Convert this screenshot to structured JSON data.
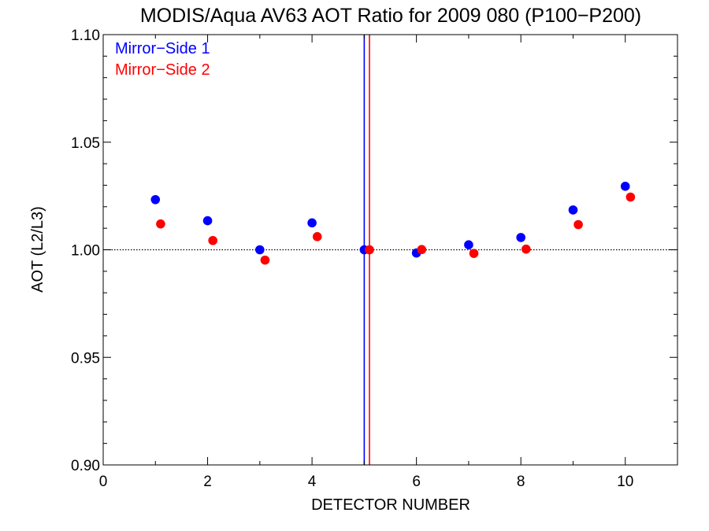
{
  "chart_data": {
    "type": "scatter",
    "title": "MODIS/Aqua AV63 AOT Ratio for 2009 080 (P100−P200)",
    "xlabel": "DETECTOR NUMBER",
    "ylabel": "AOT (L2/L3)",
    "xlim": [
      0,
      11
    ],
    "ylim": [
      0.9,
      1.1
    ],
    "xticks": [
      0,
      2,
      4,
      6,
      8,
      10
    ],
    "xtick_labels": [
      "0",
      "2",
      "4",
      "6",
      "8",
      "10"
    ],
    "yticks": [
      0.9,
      0.95,
      1.0,
      1.05,
      1.1
    ],
    "ytick_labels": [
      "0.90",
      "0.95",
      "1.00",
      "1.05",
      "1.10"
    ],
    "legend_position": "top-left",
    "reference_line": {
      "y": 1.0,
      "style": "dotted",
      "color": "#000000"
    },
    "vertical_lines": [
      {
        "x": 5.0,
        "color": "#0000ff"
      },
      {
        "x": 5.1,
        "color": "#ff0000"
      }
    ],
    "series": [
      {
        "name": "Mirror−Side 1",
        "color": "#0000ff",
        "x": [
          1,
          2,
          3,
          4,
          5,
          6,
          7,
          8,
          9,
          10
        ],
        "y": [
          1.0233,
          1.0135,
          1.0,
          1.0125,
          1.0,
          0.9985,
          1.0023,
          1.0057,
          1.0185,
          1.0295
        ]
      },
      {
        "name": "Mirror−Side 2",
        "color": "#ff0000",
        "x": [
          1.1,
          2.1,
          3.1,
          4.1,
          5.1,
          6.1,
          7.1,
          8.1,
          9.1,
          10.1
        ],
        "y": [
          1.012,
          1.0043,
          0.9952,
          1.0061,
          1.0,
          1.0001,
          0.9983,
          1.0003,
          1.0117,
          1.0245
        ]
      }
    ]
  }
}
